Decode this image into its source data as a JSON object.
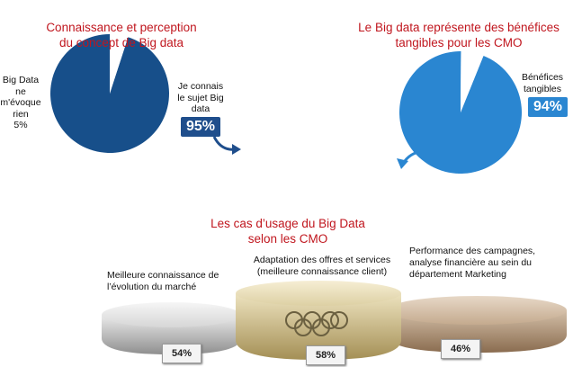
{
  "chart_data": [
    {
      "type": "pie",
      "title": "Connaissance et perception\ndu concept de Big data",
      "slices": [
        {
          "label": "Je connais\nle sujet Big\ndata",
          "value": 95,
          "color": "#174f8a"
        },
        {
          "label": "Big Data\nne\nm'évoque\nrien\n5%",
          "value": 5,
          "color": "#ffffff"
        }
      ],
      "badge": "95%"
    },
    {
      "type": "pie",
      "title": "Le Big data représente des bénéfices\ntangibles pour les CMO",
      "slices": [
        {
          "label": "Bénéfices\ntangibles",
          "value": 94,
          "color": "#2a86d1"
        },
        {
          "label": "",
          "value": 6,
          "color": "#ffffff"
        }
      ],
      "badge": "94%"
    },
    {
      "type": "bar",
      "title": "Les cas d’usage du Big Data\nselon les CMO",
      "categories": [
        "Meilleure connaissance de\nl’évolution du marché",
        "Adaptation des offres et services\n(meilleure connaissance client)",
        "Performance des campagnes,\nanalyse financière au sein du\ndépartement Marketing"
      ],
      "values": [
        54,
        58,
        46
      ],
      "value_labels": [
        "54%",
        "58%",
        "46%"
      ],
      "colors": {
        "silver": "#c9c9c9",
        "gold": "#c9b98a",
        "bronze": "#a78c72"
      }
    }
  ]
}
